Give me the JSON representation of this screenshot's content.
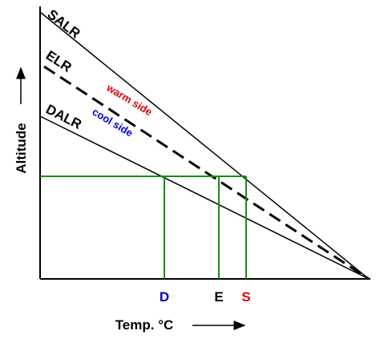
{
  "labels": {
    "salr": "SALR",
    "elr": "ELR",
    "dalr": "DALR",
    "warm": "warm side",
    "cool": "cool side"
  },
  "axes": {
    "y": "Altitude",
    "x": "Temp. °C"
  },
  "points": {
    "d": "D",
    "e": "E",
    "s": "S"
  }
}
